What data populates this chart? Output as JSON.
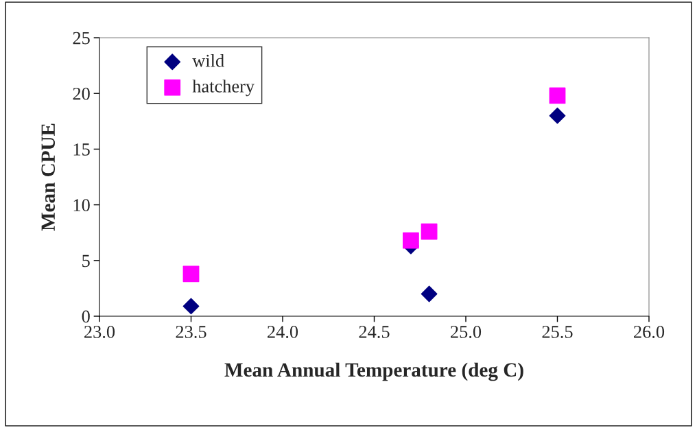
{
  "chart_data": {
    "type": "scatter",
    "xlabel": "Mean Annual Temperature (deg C)",
    "ylabel": "Mean CPUE",
    "x": [
      23.5,
      24.7,
      24.8,
      25.5
    ],
    "series": [
      {
        "name": "wild",
        "color": "#000080",
        "marker": "diamond",
        "values": [
          0.9,
          6.3,
          2.0,
          18.0
        ]
      },
      {
        "name": "hatchery",
        "color": "#ff00ff",
        "marker": "square",
        "values": [
          3.8,
          6.8,
          7.6,
          19.8
        ]
      }
    ],
    "xlim": [
      23.0,
      26.0
    ],
    "xticks": [
      {
        "value": 23.0,
        "label": "23.0"
      },
      {
        "value": 23.5,
        "label": "23.5"
      },
      {
        "value": 24.0,
        "label": "24.0"
      },
      {
        "value": 24.5,
        "label": "24.5"
      },
      {
        "value": 25.0,
        "label": "25.0"
      },
      {
        "value": 25.5,
        "label": "25.5"
      },
      {
        "value": 26.0,
        "label": "26.0"
      }
    ],
    "ylim": [
      0,
      25
    ],
    "yticks": [
      0,
      5,
      10,
      15,
      20,
      25
    ],
    "grid": false,
    "legend": "top left"
  }
}
